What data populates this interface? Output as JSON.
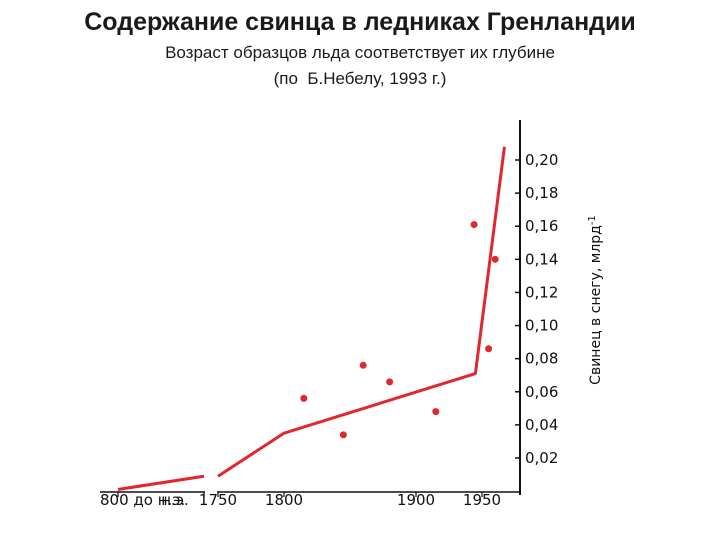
{
  "title": "Содержание свинца в ледниках Гренландии",
  "subtitle_line1": "Возраст образцов льда соответствует их глубине",
  "subtitle_line2": "(по  Б.Небелу, 1993 г.)",
  "colors": {
    "series": "#e0262e",
    "axis": "#111111"
  },
  "chart_data": {
    "type": "line",
    "title": "Содержание свинца в ледниках Гренландии",
    "ylabel": "Свинец в снегу, млрд",
    "ylabel_superscript": "-1",
    "ylim": [
      0.02,
      0.2
    ],
    "y_ticks": [
      0.2,
      0.18,
      0.16,
      0.14,
      0.12,
      0.1,
      0.08,
      0.06,
      0.04,
      0.02
    ],
    "y_tick_labels": [
      "0,20",
      "0,18",
      "0,16",
      "0,14",
      "0,12",
      "0,10",
      "0,08",
      "0,06",
      "0,04",
      "0,02"
    ],
    "x_tick_labels": [
      {
        "text": "800 до н.э.",
        "x": null
      },
      {
        "text": "н.э.",
        "x": null
      },
      {
        "text": "1750",
        "x": 1750
      },
      {
        "text": "1800",
        "x": 1800
      },
      {
        "text": "1900",
        "x": 1900
      },
      {
        "text": "1950",
        "x": 1950
      }
    ],
    "axis_break": "между н.э. и 1750",
    "series": [
      {
        "segments": [
          [
            {
              "x": "800 до н.э.",
              "y": 0.001
            },
            {
              "x": "н.э.",
              "y": 0.009
            }
          ],
          [
            {
              "x": 1750,
              "y": 0.009
            },
            {
              "x": 1800,
              "y": 0.035
            },
            {
              "x": 1945,
              "y": 0.071
            },
            {
              "x": 1967,
              "y": 0.208
            }
          ]
        ]
      }
    ],
    "points": [
      {
        "x": 1815,
        "y": 0.056
      },
      {
        "x": 1845,
        "y": 0.034
      },
      {
        "x": 1860,
        "y": 0.076
      },
      {
        "x": 1880,
        "y": 0.066
      },
      {
        "x": 1915,
        "y": 0.048
      },
      {
        "x": 1944,
        "y": 0.161
      },
      {
        "x": 1955,
        "y": 0.086
      },
      {
        "x": 1960,
        "y": 0.14
      }
    ]
  }
}
